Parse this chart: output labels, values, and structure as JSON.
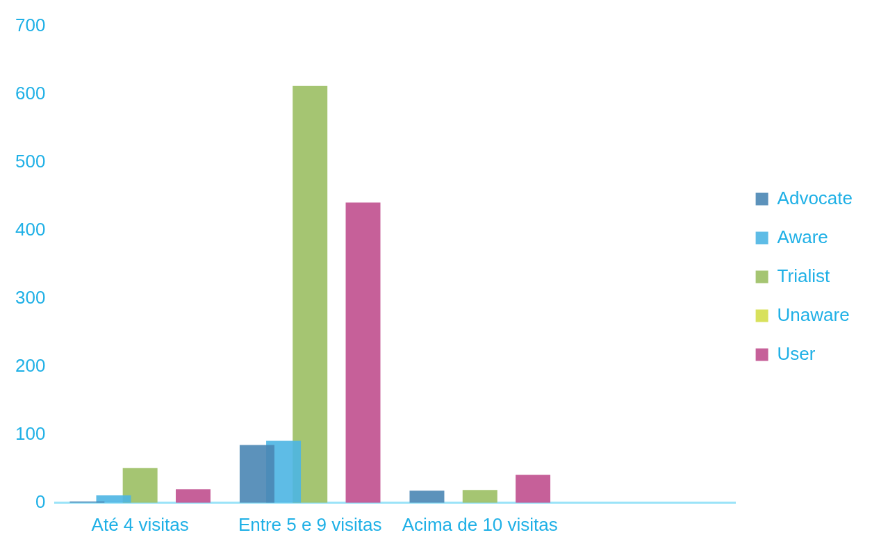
{
  "chart_data": {
    "type": "bar",
    "categories": [
      "Até 4 visitas",
      "Entre 5 e 9 visitas",
      "Acima de 10 visitas",
      null
    ],
    "series": [
      {
        "name": "Advocate",
        "color": "#4a86b4",
        "values": [
          2,
          85,
          18,
          null
        ]
      },
      {
        "name": "Aware",
        "color": "#4cb5e3",
        "values": [
          11,
          91,
          null,
          null
        ]
      },
      {
        "name": "Trialist",
        "color": "#9bbf63",
        "values": [
          51,
          612,
          19,
          null
        ]
      },
      {
        "name": "Unaware",
        "color": "#d4de4a",
        "values": [
          null,
          null,
          null,
          null
        ]
      },
      {
        "name": "User",
        "color": "#c04f8e",
        "values": [
          20,
          441,
          41,
          null
        ]
      }
    ],
    "ylim": [
      0,
      700
    ],
    "yticks": [
      0,
      100,
      200,
      300,
      400,
      500,
      600,
      700
    ],
    "grid": false,
    "legend": "right"
  }
}
